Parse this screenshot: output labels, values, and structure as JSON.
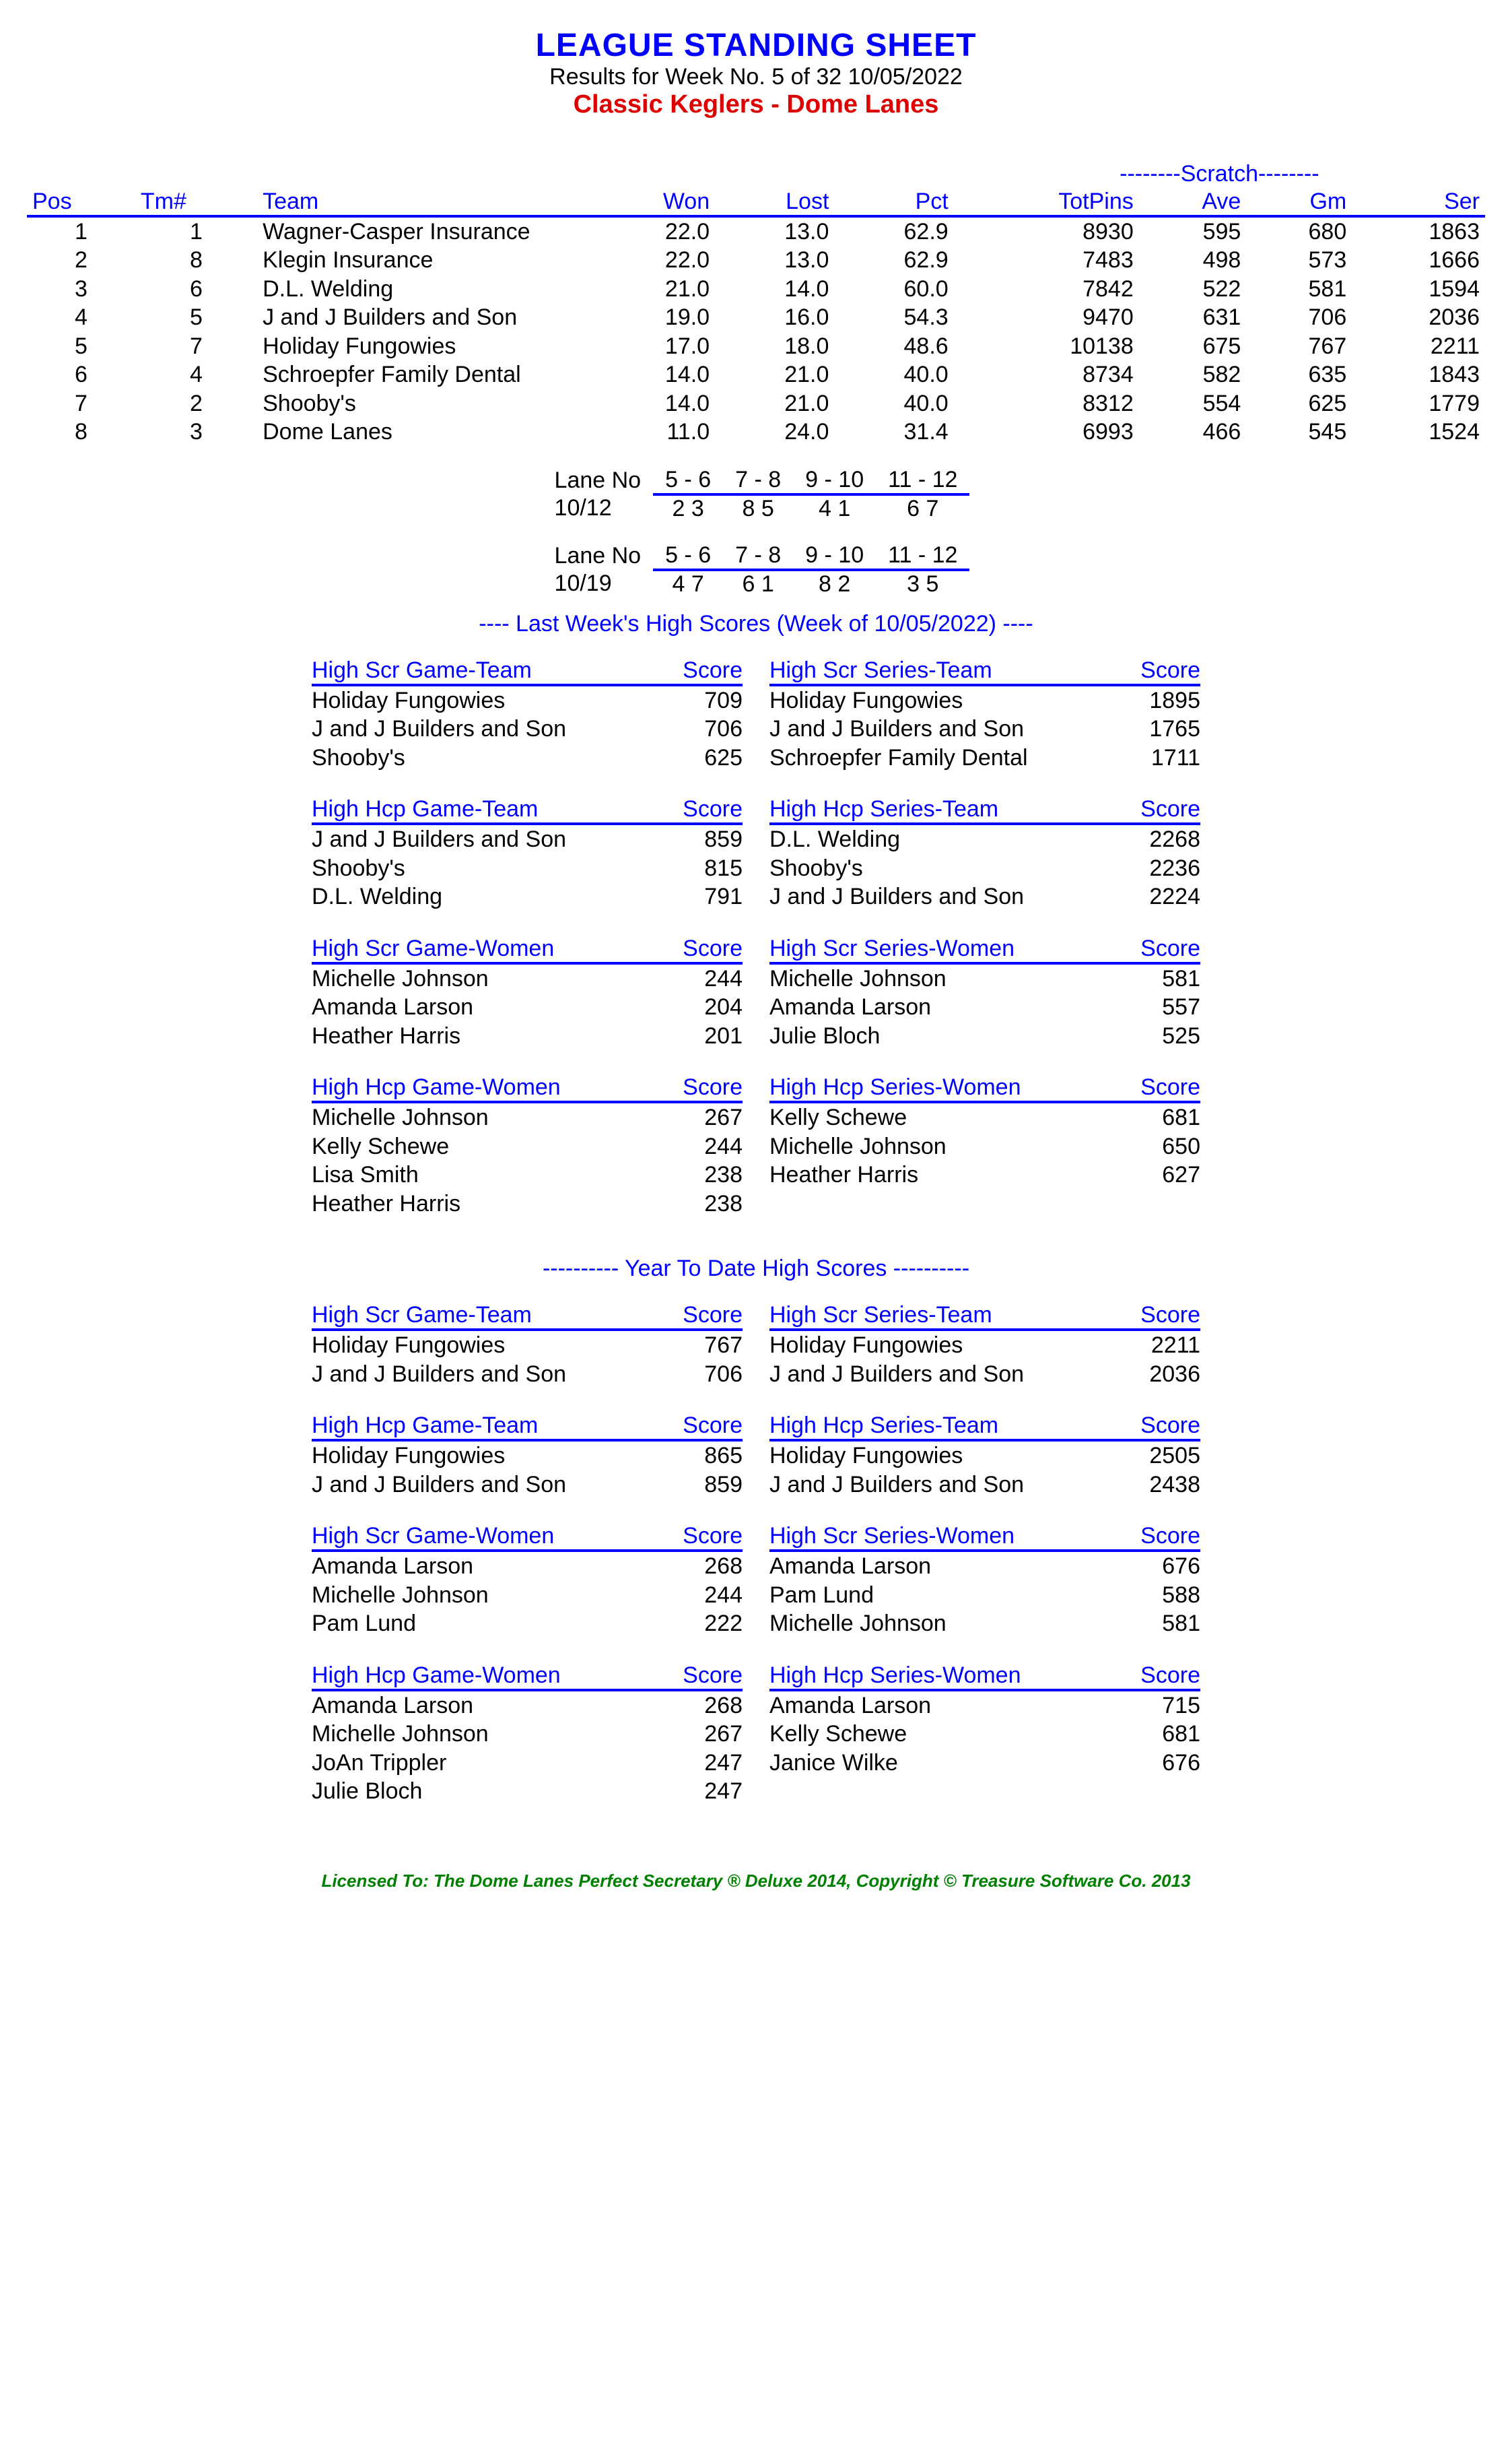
{
  "header": {
    "title": "LEAGUE STANDING SHEET",
    "subtitle": "Results for Week No. 5 of 32    10/05/2022",
    "league": "Classic Keglers - Dome Lanes"
  },
  "standings": {
    "scratch_label": "--------Scratch--------",
    "columns": [
      "Pos",
      "Tm#",
      "Team",
      "Won",
      "Lost",
      "Pct",
      "TotPins",
      "Ave",
      "Gm",
      "Ser"
    ],
    "rows": [
      [
        "1",
        "1",
        "Wagner-Casper Insurance",
        "22.0",
        "13.0",
        "62.9",
        "8930",
        "595",
        "680",
        "1863"
      ],
      [
        "2",
        "8",
        "Klegin Insurance",
        "22.0",
        "13.0",
        "62.9",
        "7483",
        "498",
        "573",
        "1666"
      ],
      [
        "3",
        "6",
        "D.L. Welding",
        "21.0",
        "14.0",
        "60.0",
        "7842",
        "522",
        "581",
        "1594"
      ],
      [
        "4",
        "5",
        "J and J Builders and Son",
        "19.0",
        "16.0",
        "54.3",
        "9470",
        "631",
        "706",
        "2036"
      ],
      [
        "5",
        "7",
        "Holiday Fungowies",
        "17.0",
        "18.0",
        "48.6",
        "10138",
        "675",
        "767",
        "2211"
      ],
      [
        "6",
        "4",
        "Schroepfer Family Dental",
        "14.0",
        "21.0",
        "40.0",
        "8734",
        "582",
        "635",
        "1843"
      ],
      [
        "7",
        "2",
        "Shooby's",
        "14.0",
        "21.0",
        "40.0",
        "8312",
        "554",
        "625",
        "1779"
      ],
      [
        "8",
        "3",
        "Dome Lanes",
        "11.0",
        "24.0",
        "31.4",
        "6993",
        "466",
        "545",
        "1524"
      ]
    ]
  },
  "schedules": [
    {
      "lane_label": "Lane No",
      "lanes": [
        "5 -  6",
        "7 -  8",
        "9 - 10",
        "11 - 12"
      ],
      "date": "10/12",
      "teams": [
        "2   3",
        "8   5",
        "4   1",
        "6   7"
      ]
    },
    {
      "lane_label": "Lane No",
      "lanes": [
        "5 -  6",
        "7 -  8",
        "9 - 10",
        "11 - 12"
      ],
      "date": "10/19",
      "teams": [
        "4   7",
        "6   1",
        "8   2",
        "3   5"
      ]
    }
  ],
  "lastweek": {
    "label": "----  Last Week's High Scores   (Week of 10/05/2022)  ----",
    "score_label": "Score",
    "left": [
      {
        "title": "High Scr Game-Team",
        "rows": [
          [
            "Holiday Fungowies",
            "709"
          ],
          [
            "J and J Builders and Son",
            "706"
          ],
          [
            "Shooby's",
            "625"
          ]
        ]
      },
      {
        "title": "High Hcp Game-Team",
        "rows": [
          [
            "J and J Builders and Son",
            "859"
          ],
          [
            "Shooby's",
            "815"
          ],
          [
            "D.L. Welding",
            "791"
          ]
        ]
      },
      {
        "title": "High Scr Game-Women",
        "rows": [
          [
            "Michelle Johnson",
            "244"
          ],
          [
            "Amanda Larson",
            "204"
          ],
          [
            "Heather Harris",
            "201"
          ]
        ]
      },
      {
        "title": "High Hcp Game-Women",
        "rows": [
          [
            "Michelle Johnson",
            "267"
          ],
          [
            "Kelly Schewe",
            "244"
          ],
          [
            "Lisa Smith",
            "238"
          ],
          [
            "Heather Harris",
            "238"
          ]
        ]
      }
    ],
    "right": [
      {
        "title": "High Scr Series-Team",
        "rows": [
          [
            "Holiday Fungowies",
            "1895"
          ],
          [
            "J and J Builders and Son",
            "1765"
          ],
          [
            "Schroepfer Family Dental",
            "1711"
          ]
        ]
      },
      {
        "title": "High Hcp Series-Team",
        "rows": [
          [
            "D.L. Welding",
            "2268"
          ],
          [
            "Shooby's",
            "2236"
          ],
          [
            "J and J Builders and Son",
            "2224"
          ]
        ]
      },
      {
        "title": "High Scr Series-Women",
        "rows": [
          [
            "Michelle Johnson",
            "581"
          ],
          [
            "Amanda Larson",
            "557"
          ],
          [
            "Julie Bloch",
            "525"
          ]
        ]
      },
      {
        "title": "High Hcp Series-Women",
        "rows": [
          [
            "Kelly Schewe",
            "681"
          ],
          [
            "Michelle Johnson",
            "650"
          ],
          [
            "Heather Harris",
            "627"
          ]
        ]
      }
    ]
  },
  "ytd": {
    "label": "---------- Year To Date High Scores ----------",
    "score_label": "Score",
    "left": [
      {
        "title": "High Scr Game-Team",
        "rows": [
          [
            "Holiday Fungowies",
            "767"
          ],
          [
            "J and J Builders and Son",
            "706"
          ]
        ]
      },
      {
        "title": "High Hcp Game-Team",
        "rows": [
          [
            "Holiday Fungowies",
            "865"
          ],
          [
            "J and J Builders and Son",
            "859"
          ]
        ]
      },
      {
        "title": "High Scr Game-Women",
        "rows": [
          [
            "Amanda Larson",
            "268"
          ],
          [
            "Michelle Johnson",
            "244"
          ],
          [
            "Pam Lund",
            "222"
          ]
        ]
      },
      {
        "title": "High Hcp Game-Women",
        "rows": [
          [
            "Amanda Larson",
            "268"
          ],
          [
            "Michelle Johnson",
            "267"
          ],
          [
            "JoAn Trippler",
            "247"
          ],
          [
            "Julie Bloch",
            "247"
          ]
        ]
      }
    ],
    "right": [
      {
        "title": "High Scr Series-Team",
        "rows": [
          [
            "Holiday Fungowies",
            "2211"
          ],
          [
            "J and J Builders and Son",
            "2036"
          ]
        ]
      },
      {
        "title": "High Hcp Series-Team",
        "rows": [
          [
            "Holiday Fungowies",
            "2505"
          ],
          [
            "J and J Builders and Son",
            "2438"
          ]
        ]
      },
      {
        "title": "High Scr Series-Women",
        "rows": [
          [
            "Amanda Larson",
            "676"
          ],
          [
            "Pam Lund",
            "588"
          ],
          [
            "Michelle Johnson",
            "581"
          ]
        ]
      },
      {
        "title": "High Hcp Series-Women",
        "rows": [
          [
            "Amanda Larson",
            "715"
          ],
          [
            "Kelly Schewe",
            "681"
          ],
          [
            "Janice Wilke",
            "676"
          ]
        ]
      }
    ]
  },
  "footer": "Licensed To: The Dome Lanes    Perfect Secretary ® Deluxe  2014, Copyright © Treasure Software Co. 2013"
}
